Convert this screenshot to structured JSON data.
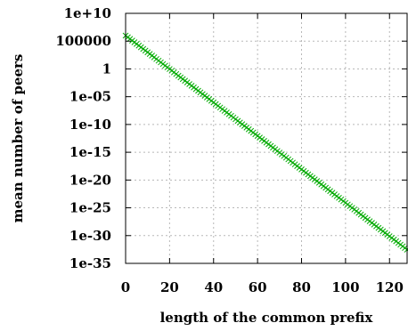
{
  "chart_data": {
    "type": "scatter",
    "title": "",
    "xlabel": "length of the common prefix",
    "ylabel": "mean number of peers",
    "xlim": [
      0,
      128
    ],
    "ylim_log10": [
      -35,
      10
    ],
    "yscale": "log",
    "grid": true,
    "x_ticks": [
      0,
      20,
      40,
      60,
      80,
      100,
      120
    ],
    "x_tick_labels": [
      "0",
      "20",
      "40",
      "60",
      "80",
      "100",
      "120"
    ],
    "y_ticks_log10": [
      10,
      5,
      0,
      -5,
      -10,
      -15,
      -20,
      -25,
      -30,
      -35
    ],
    "y_tick_labels": [
      "1e+10",
      "100000",
      "1",
      "1e-05",
      "1e-10",
      "1e-15",
      "1e-20",
      "1e-25",
      "1e-30",
      "1e-35"
    ],
    "series": [
      {
        "color": "#00aa00",
        "marker": "x",
        "x_start": 0,
        "x_end": 128,
        "x_step": 1,
        "log10_y_at_x0": 6,
        "log10_y_change_per_x": -0.301
      }
    ]
  }
}
